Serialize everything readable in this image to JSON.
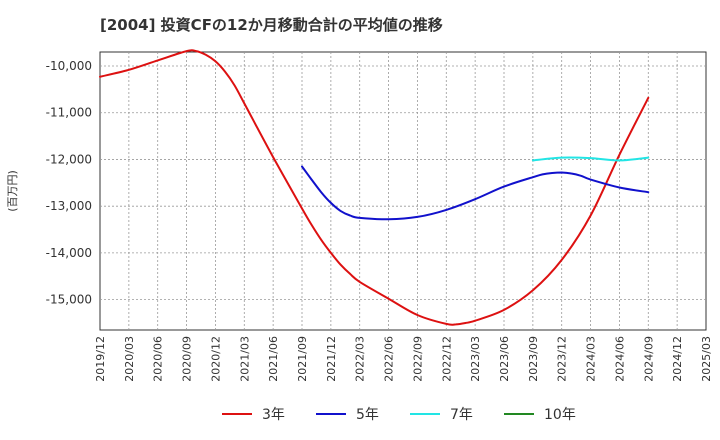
{
  "chart_data": {
    "type": "line",
    "title": "[2004]  投資CFの12か月移動合計の平均値の推移",
    "xlabel": "",
    "ylabel": "(百万円)",
    "ylim": [
      -15650,
      -9700
    ],
    "yticks": [
      -10000,
      -11000,
      -12000,
      -13000,
      -14000,
      -15000
    ],
    "ytick_labels": [
      "-10,000",
      "-11,000",
      "-12,000",
      "-13,000",
      "-14,000",
      "-15,000"
    ],
    "xticks": [
      "2019/12",
      "2020/03",
      "2020/06",
      "2020/09",
      "2020/12",
      "2021/03",
      "2021/06",
      "2021/09",
      "2021/12",
      "2022/03",
      "2022/06",
      "2022/09",
      "2022/12",
      "2023/03",
      "2023/06",
      "2023/09",
      "2023/12",
      "2024/03",
      "2024/06",
      "2024/09",
      "2024/12",
      "2025/03"
    ],
    "grid": true,
    "legend_position": "bottom",
    "series": [
      {
        "name": "3年",
        "color": "#dd1111",
        "x": [
          "2019/12",
          "2020/03",
          "2020/06",
          "2020/09",
          "2020/10",
          "2020/11",
          "2020/12",
          "2021/01",
          "2021/02",
          "2021/03",
          "2021/06",
          "2021/09",
          "2021/10",
          "2021/11",
          "2021/12",
          "2022/01",
          "2022/02",
          "2022/03",
          "2022/06",
          "2022/09",
          "2022/12",
          "2023/01",
          "2023/02",
          "2023/03",
          "2023/06",
          "2023/09",
          "2023/12",
          "2024/03",
          "2024/06",
          "2024/09"
        ],
        "values": [
          -10230,
          -10080,
          -9880,
          -9680,
          -9680,
          -9760,
          -9900,
          -10120,
          -10420,
          -10800,
          -11950,
          -13050,
          -13400,
          -13720,
          -14000,
          -14250,
          -14450,
          -14620,
          -14980,
          -15330,
          -15520,
          -15530,
          -15500,
          -15450,
          -15220,
          -14800,
          -14150,
          -13200,
          -11900,
          -10680
        ]
      },
      {
        "name": "5年",
        "color": "#1111cc",
        "x": [
          "2021/09",
          "2021/10",
          "2021/11",
          "2021/12",
          "2022/01",
          "2022/02",
          "2022/03",
          "2022/06",
          "2022/09",
          "2022/12",
          "2023/03",
          "2023/06",
          "2023/09",
          "2023/10",
          "2023/11",
          "2023/12",
          "2024/01",
          "2024/02",
          "2024/03",
          "2024/06",
          "2024/09"
        ],
        "values": [
          -12150,
          -12430,
          -12700,
          -12930,
          -13100,
          -13200,
          -13250,
          -13280,
          -13230,
          -13080,
          -12850,
          -12580,
          -12380,
          -12320,
          -12290,
          -12280,
          -12300,
          -12350,
          -12430,
          -12600,
          -12700
        ]
      },
      {
        "name": "7年",
        "color": "#22e5e5",
        "x": [
          "2023/09",
          "2023/12",
          "2024/03",
          "2024/06",
          "2024/09"
        ],
        "values": [
          -12020,
          -11960,
          -11970,
          -12020,
          -11960
        ]
      },
      {
        "name": "10年",
        "color": "#228822",
        "x": [],
        "values": []
      }
    ]
  }
}
